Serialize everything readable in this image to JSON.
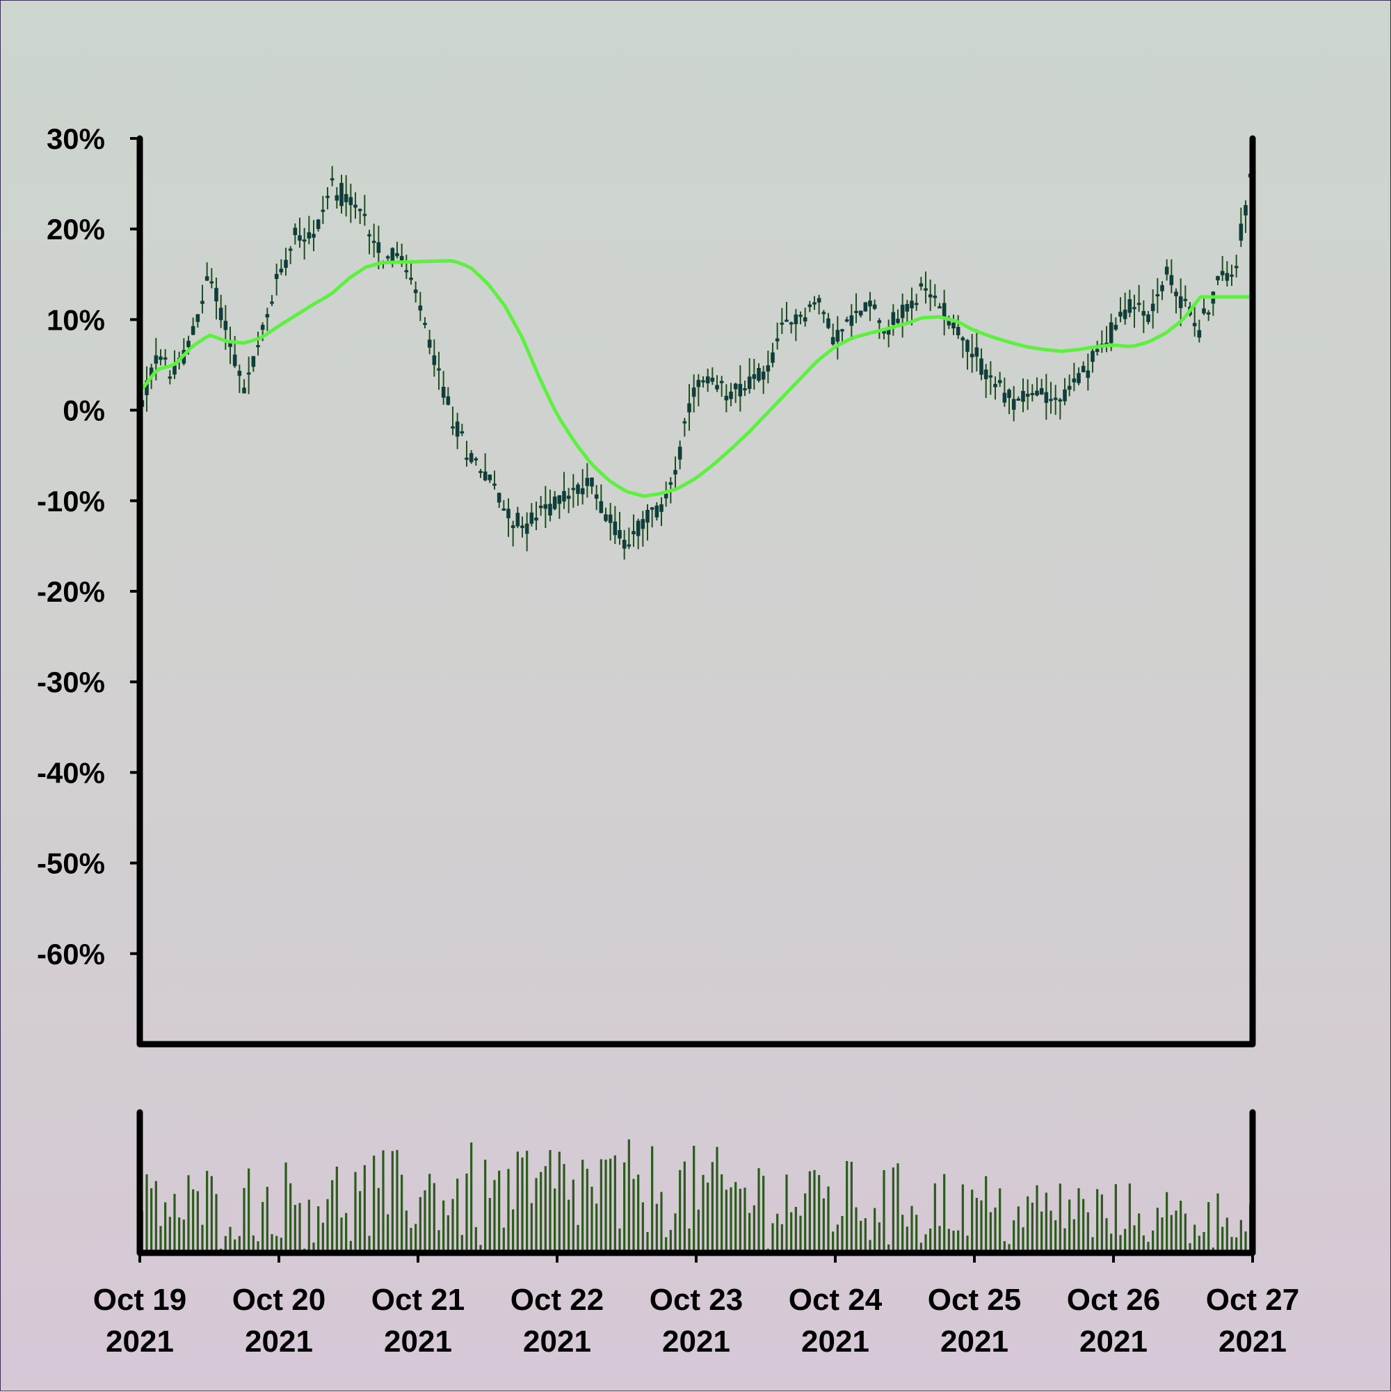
{
  "chart_data": [
    {
      "type": "candlestick",
      "title": "",
      "xlabel": "",
      "ylabel": "",
      "ylim": [
        -70,
        30
      ],
      "y_ticks": [
        "30%",
        "20%",
        "10%",
        "0%",
        "-10%",
        "-20%",
        "-30%",
        "-40%",
        "-50%",
        "-60%"
      ],
      "y_tick_values": [
        30,
        20,
        10,
        0,
        -10,
        -20,
        -30,
        -40,
        -50,
        -60
      ],
      "x_range": [
        "2021-10-19",
        "2021-10-27"
      ],
      "x_ticks": [
        {
          "date": "2021-10-19",
          "line1": "Oct 19",
          "line2": "2021"
        },
        {
          "date": "2021-10-20",
          "line1": "Oct 20",
          "line2": "2021"
        },
        {
          "date": "2021-10-21",
          "line1": "Oct 21",
          "line2": "2021"
        },
        {
          "date": "2021-10-22",
          "line1": "Oct 22",
          "line2": "2021"
        },
        {
          "date": "2021-10-23",
          "line1": "Oct 23",
          "line2": "2021"
        },
        {
          "date": "2021-10-24",
          "line1": "Oct 24",
          "line2": "2021"
        },
        {
          "date": "2021-10-25",
          "line1": "Oct 25",
          "line2": "2021"
        },
        {
          "date": "2021-10-26",
          "line1": "Oct 26",
          "line2": "2021"
        },
        {
          "date": "2021-10-27",
          "line1": "Oct 27",
          "line2": "2021"
        }
      ],
      "grid": false,
      "legend": "none",
      "price_series": {
        "unit": "%",
        "close_path": [
          [
            "2021-10-19 00:00",
            0
          ],
          [
            "2021-10-19 03:00",
            6
          ],
          [
            "2021-10-19 06:00",
            4
          ],
          [
            "2021-10-19 09:00",
            8
          ],
          [
            "2021-10-19 12:00",
            15
          ],
          [
            "2021-10-19 15:00",
            9
          ],
          [
            "2021-10-19 18:00",
            2
          ],
          [
            "2021-10-19 21:00",
            8
          ],
          [
            "2021-10-20 00:00",
            15
          ],
          [
            "2021-10-20 03:00",
            20
          ],
          [
            "2021-10-20 06:00",
            19
          ],
          [
            "2021-10-20 09:00",
            25
          ],
          [
            "2021-10-20 12:00",
            23
          ],
          [
            "2021-10-20 15:00",
            21
          ],
          [
            "2021-10-20 18:00",
            17
          ],
          [
            "2021-10-20 21:00",
            17
          ],
          [
            "2021-10-21 00:00",
            12
          ],
          [
            "2021-10-21 03:00",
            5
          ],
          [
            "2021-10-21 06:00",
            -1
          ],
          [
            "2021-10-21 09:00",
            -5
          ],
          [
            "2021-10-21 12:00",
            -7
          ],
          [
            "2021-10-21 15:00",
            -11
          ],
          [
            "2021-10-21 18:00",
            -13
          ],
          [
            "2021-10-22 00:00",
            -10
          ],
          [
            "2021-10-22 06:00",
            -8
          ],
          [
            "2021-10-22 09:00",
            -12
          ],
          [
            "2021-10-22 12:00",
            -15
          ],
          [
            "2021-10-22 15:00",
            -12
          ],
          [
            "2021-10-22 18:00",
            -11
          ],
          [
            "2021-10-22 21:00",
            -5
          ],
          [
            "2021-10-23 00:00",
            3
          ],
          [
            "2021-10-23 06:00",
            2
          ],
          [
            "2021-10-23 12:00",
            4
          ],
          [
            "2021-10-23 15:00",
            9
          ],
          [
            "2021-10-23 21:00",
            12
          ],
          [
            "2021-10-24 00:00",
            8
          ],
          [
            "2021-10-24 03:00",
            10
          ],
          [
            "2021-10-24 06:00",
            12
          ],
          [
            "2021-10-24 09:00",
            9
          ],
          [
            "2021-10-24 15:00",
            13
          ],
          [
            "2021-10-24 18:00",
            12
          ],
          [
            "2021-10-24 21:00",
            9
          ],
          [
            "2021-10-25 00:00",
            6
          ],
          [
            "2021-10-25 06:00",
            1
          ],
          [
            "2021-10-25 12:00",
            2
          ],
          [
            "2021-10-25 15:00",
            1
          ],
          [
            "2021-10-25 21:00",
            6
          ],
          [
            "2021-10-26 03:00",
            12
          ],
          [
            "2021-10-26 06:00",
            10
          ],
          [
            "2021-10-26 09:00",
            15
          ],
          [
            "2021-10-26 15:00",
            9
          ],
          [
            "2021-10-26 18:00",
            14
          ],
          [
            "2021-10-26 21:00",
            16
          ],
          [
            "2021-10-27 00:00",
            27
          ]
        ]
      },
      "moving_average": {
        "color": "#5df040",
        "path": [
          [
            "2021-10-19 00:00",
            2
          ],
          [
            "2021-10-19 03:00",
            4.5
          ],
          [
            "2021-10-19 06:00",
            5
          ],
          [
            "2021-10-19 09:00",
            7
          ],
          [
            "2021-10-19 12:00",
            8.3
          ],
          [
            "2021-10-19 15:00",
            7.6
          ],
          [
            "2021-10-19 18:00",
            7.4
          ],
          [
            "2021-10-19 21:00",
            8
          ],
          [
            "2021-10-20 00:00",
            9.3
          ],
          [
            "2021-10-20 03:00",
            10.5
          ],
          [
            "2021-10-20 06:00",
            11.7
          ],
          [
            "2021-10-20 09:00",
            12.8
          ],
          [
            "2021-10-20 12:00",
            14.5
          ],
          [
            "2021-10-20 15:00",
            15.8
          ],
          [
            "2021-10-20 18:00",
            16.3
          ],
          [
            "2021-10-21 00:00",
            16.4
          ],
          [
            "2021-10-21 06:00",
            16.5
          ],
          [
            "2021-10-21 09:00",
            15.8
          ],
          [
            "2021-10-21 12:00",
            14
          ],
          [
            "2021-10-21 15:00",
            11.5
          ],
          [
            "2021-10-21 18:00",
            8
          ],
          [
            "2021-10-21 21:00",
            3.5
          ],
          [
            "2021-10-22 00:00",
            -0.5
          ],
          [
            "2021-10-22 03:00",
            -3.5
          ],
          [
            "2021-10-22 06:00",
            -6
          ],
          [
            "2021-10-22 09:00",
            -7.8
          ],
          [
            "2021-10-22 12:00",
            -9
          ],
          [
            "2021-10-22 15:00",
            -9.5
          ],
          [
            "2021-10-22 18:00",
            -9.2
          ],
          [
            "2021-10-22 21:00",
            -8.6
          ],
          [
            "2021-10-23 00:00",
            -7.5
          ],
          [
            "2021-10-23 03:00",
            -6
          ],
          [
            "2021-10-23 06:00",
            -4.3
          ],
          [
            "2021-10-23 09:00",
            -2.5
          ],
          [
            "2021-10-23 12:00",
            -0.5
          ],
          [
            "2021-10-23 15:00",
            1.5
          ],
          [
            "2021-10-23 18:00",
            3.5
          ],
          [
            "2021-10-23 21:00",
            5.5
          ],
          [
            "2021-10-24 00:00",
            7
          ],
          [
            "2021-10-24 03:00",
            8
          ],
          [
            "2021-10-24 06:00",
            8.5
          ],
          [
            "2021-10-24 09:00",
            9
          ],
          [
            "2021-10-24 12:00",
            9.5
          ],
          [
            "2021-10-24 15:00",
            10.2
          ],
          [
            "2021-10-24 18:00",
            10.3
          ],
          [
            "2021-10-24 21:00",
            9.8
          ],
          [
            "2021-10-25 00:00",
            8.8
          ],
          [
            "2021-10-25 03:00",
            8.1
          ],
          [
            "2021-10-25 06:00",
            7.5
          ],
          [
            "2021-10-25 09:00",
            7
          ],
          [
            "2021-10-25 12:00",
            6.7
          ],
          [
            "2021-10-25 15:00",
            6.5
          ],
          [
            "2021-10-25 18:00",
            6.7
          ],
          [
            "2021-10-25 21:00",
            7
          ],
          [
            "2021-10-26 00:00",
            7.2
          ],
          [
            "2021-10-26 03:00",
            7
          ],
          [
            "2021-10-26 06:00",
            7.5
          ],
          [
            "2021-10-26 09:00",
            8.5
          ],
          [
            "2021-10-26 12:00",
            10
          ],
          [
            "2021-10-26 15:00",
            12.5
          ]
        ]
      },
      "volume": {
        "color": "#2d5a1e",
        "bar_count": 240,
        "relative_max": 1.0
      },
      "colors": {
        "candle": "#0f3d3a",
        "wick": "#1f4f1c",
        "volume": "#2d5a1e",
        "moving_average": "#5df040",
        "axis": "#000000"
      }
    }
  ]
}
